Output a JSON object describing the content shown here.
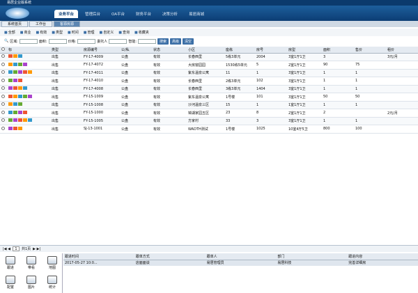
{
  "title": "易居企业版系统",
  "nav": [
    "业务平台",
    "管理后台",
    "OA平台",
    "财务平台",
    "决策分析",
    "易居商城"
  ],
  "tabs": [
    "系统首页",
    "工作台",
    "客源房源"
  ],
  "toolbar": [
    "全部",
    "商业",
    "有效",
    "类型",
    "时间",
    "管理",
    "自定义",
    "查询",
    "收藏夹"
  ],
  "search": {
    "labels": [
      "区域:",
      "面积:",
      "价格:",
      "委托人",
      "智能:"
    ],
    "buttons": [
      "搜索",
      "高级",
      "清空"
    ]
  },
  "table": {
    "headers": [
      "标",
      "类型",
      "房源编号",
      "公/私",
      "状态",
      "小区",
      "座栋",
      "房号",
      "房型",
      "面积",
      "售价",
      "租价"
    ],
    "rows": [
      {
        "type": "出售",
        "code": "FY-17-4009",
        "share": "公盘",
        "status": "有效",
        "estate": "长春西里",
        "building": "5栋3单元",
        "room": "2004",
        "layout": "3室1厅1卫",
        "area": "3",
        "rent": "3元/月"
      },
      {
        "type": "出售",
        "code": "FY-17-4072",
        "share": "公盘",
        "status": "有效",
        "estate": "大房窗园园",
        "building": "1530栋5单元",
        "room": "5",
        "layout": "2室1厅1卫",
        "area": "90",
        "sale": "75"
      },
      {
        "type": "出售",
        "code": "FY-17-4011",
        "share": "公盘",
        "status": "有效",
        "estate": "紫东温泉公寓",
        "building": "11",
        "room": "1",
        "layout": "3室1厅1卫",
        "area": "1",
        "sale": "1"
      },
      {
        "type": "出售",
        "code": "FY-17-4010",
        "share": "公盘",
        "status": "有效",
        "estate": "长春西里",
        "building": "2栋3单元",
        "room": "102",
        "layout": "3室1厅1卫",
        "area": "1",
        "sale": "1"
      },
      {
        "type": "出售",
        "code": "FY-17-4008",
        "share": "公盘",
        "status": "有效",
        "estate": "长春西里",
        "building": "3栋3单元",
        "room": "1404",
        "layout": "3室1厅1卫",
        "area": "1",
        "sale": "1"
      },
      {
        "type": "出售",
        "code": "FY-15-1009",
        "share": "公盘",
        "status": "有效",
        "estate": "紫东温泉公寓",
        "building": "1号楼",
        "room": "101",
        "layout": "3室1厅1卫",
        "area": "50",
        "sale": "50"
      },
      {
        "type": "出售",
        "code": "FY-15-1008",
        "share": "公盘",
        "status": "有效",
        "estate": "沙河温泉三区",
        "building": "15",
        "room": "1",
        "layout": "1室1厅1卫",
        "area": "1",
        "sale": "1"
      },
      {
        "type": "出售",
        "code": "FY-15-1000",
        "share": "公盘",
        "status": "有效",
        "estate": "锦湖家园五区",
        "building": "23",
        "room": "8",
        "layout": "2室1厅1卫",
        "area": "2",
        "rent": "2元/月"
      },
      {
        "type": "出售",
        "code": "FY-15-1005",
        "share": "公盘",
        "status": "有效",
        "estate": "方家村",
        "building": "33",
        "room": "3",
        "layout": "3室1厅1卫",
        "area": "1",
        "sale": "1"
      },
      {
        "type": "出售",
        "code": "SJ-13-1001",
        "share": "公盘",
        "status": "有效",
        "estate": "WADTH测试",
        "building": "1号楼",
        "room": "1025",
        "layout": "10室4厅5卫",
        "area": "800",
        "sale": "100"
      }
    ]
  },
  "pager": {
    "page": "1",
    "total": "共1页"
  },
  "shortcuts": [
    "跟进",
    "带看",
    "地图",
    "配置",
    "图片",
    "统计"
  ],
  "followups": {
    "headers": [
      "跟进时间",
      "跟单方式",
      "跟单人",
      "部门",
      "跟进内容"
    ],
    "rows": [
      [
        "2017-05-27 10:0...",
        "店面面谈",
        "易居管理员",
        "易居科技",
        "完善详细房"
      ]
    ]
  }
}
